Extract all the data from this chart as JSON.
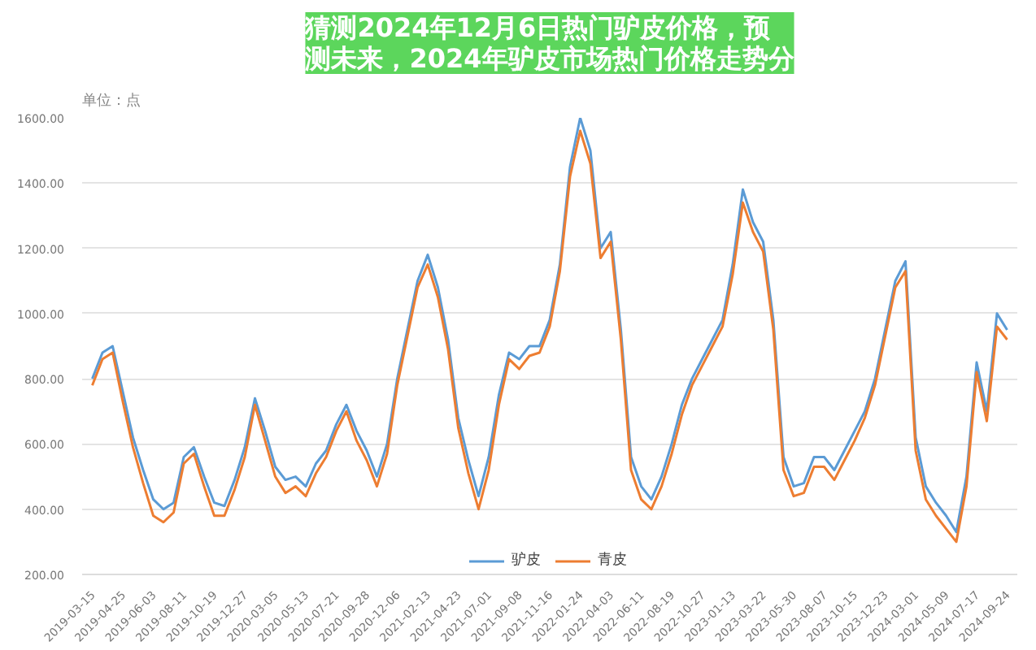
{
  "chart_data": {
    "type": "line",
    "title": "猜测2024年12月6日热门驴皮价格，预测未来，2024年驴皮市场热门价格走势分",
    "ylabel": "单位：点",
    "categories": [
      "2019-03-15",
      null,
      null,
      "2019-04-25",
      null,
      null,
      "2019-06-03",
      null,
      null,
      "2019-08-11",
      null,
      null,
      "2019-10-19",
      null,
      null,
      "2019-12-27",
      null,
      null,
      "2020-03-05",
      null,
      null,
      "2020-05-13",
      null,
      null,
      "2020-07-21",
      null,
      null,
      "2020-09-28",
      null,
      null,
      "2020-12-06",
      null,
      null,
      "2021-02-13",
      null,
      null,
      "2021-04-23",
      null,
      null,
      "2021-07-01",
      null,
      null,
      "2021-09-08",
      null,
      null,
      "2021-11-16",
      null,
      null,
      "2022-01-24",
      null,
      null,
      "2022-04-03",
      null,
      null,
      "2022-06-11",
      null,
      null,
      "2022-08-19",
      null,
      null,
      "2022-10-27",
      null,
      null,
      "2023-01-13",
      null,
      null,
      "2023-03-22",
      null,
      null,
      "2023-05-30",
      null,
      null,
      "2023-08-07",
      null,
      null,
      "2023-10-15",
      null,
      null,
      "2023-12-23",
      null,
      null,
      "2024-03-01",
      null,
      null,
      "2024-05-09",
      null,
      null,
      "2024-07-17",
      null,
      null,
      "2024-09-24"
    ],
    "series": [
      {
        "name": "驴皮",
        "color": "#5b9bd5",
        "values": [
          800,
          880,
          900,
          760,
          620,
          520,
          430,
          400,
          420,
          560,
          590,
          500,
          420,
          410,
          490,
          590,
          740,
          640,
          530,
          490,
          500,
          470,
          540,
          580,
          660,
          720,
          640,
          580,
          500,
          600,
          800,
          950,
          1100,
          1180,
          1080,
          920,
          680,
          550,
          440,
          560,
          750,
          880,
          860,
          900,
          900,
          980,
          1150,
          1450,
          1600,
          1500,
          1200,
          1250,
          950,
          560,
          470,
          430,
          500,
          600,
          720,
          800,
          860,
          920,
          980,
          1150,
          1380,
          1280,
          1220,
          980,
          560,
          470,
          480,
          560,
          560,
          520,
          580,
          640,
          700,
          800,
          950,
          1100,
          1160,
          620,
          470,
          420,
          380,
          330,
          500,
          850,
          700,
          1000,
          950
        ]
      },
      {
        "name": "青皮",
        "color": "#ed7d31",
        "values": [
          780,
          860,
          880,
          730,
          590,
          480,
          380,
          360,
          390,
          540,
          570,
          470,
          380,
          380,
          460,
          560,
          720,
          610,
          500,
          450,
          470,
          440,
          510,
          560,
          640,
          700,
          610,
          550,
          470,
          570,
          780,
          930,
          1080,
          1150,
          1050,
          890,
          650,
          510,
          400,
          520,
          720,
          860,
          830,
          870,
          880,
          960,
          1130,
          1420,
          1560,
          1460,
          1170,
          1220,
          920,
          520,
          430,
          400,
          470,
          570,
          690,
          780,
          840,
          900,
          960,
          1120,
          1340,
          1250,
          1190,
          950,
          520,
          440,
          450,
          530,
          530,
          490,
          550,
          610,
          680,
          780,
          930,
          1080,
          1130,
          580,
          430,
          380,
          340,
          300,
          470,
          820,
          670,
          960,
          920
        ]
      }
    ],
    "ylim": [
      200,
      1600
    ],
    "yticks": [
      {
        "value": 200,
        "label": "200.00"
      },
      {
        "value": 400,
        "label": "400.00"
      },
      {
        "value": 600,
        "label": "600.00"
      },
      {
        "value": 800,
        "label": "800.00"
      },
      {
        "value": 1000,
        "label": "1000.00"
      },
      {
        "value": 1200,
        "label": "1200.00"
      },
      {
        "value": 1400,
        "label": "1400.00"
      },
      {
        "value": 1600,
        "label": "1600.00"
      }
    ],
    "grid": "y",
    "legend": "bottom"
  }
}
